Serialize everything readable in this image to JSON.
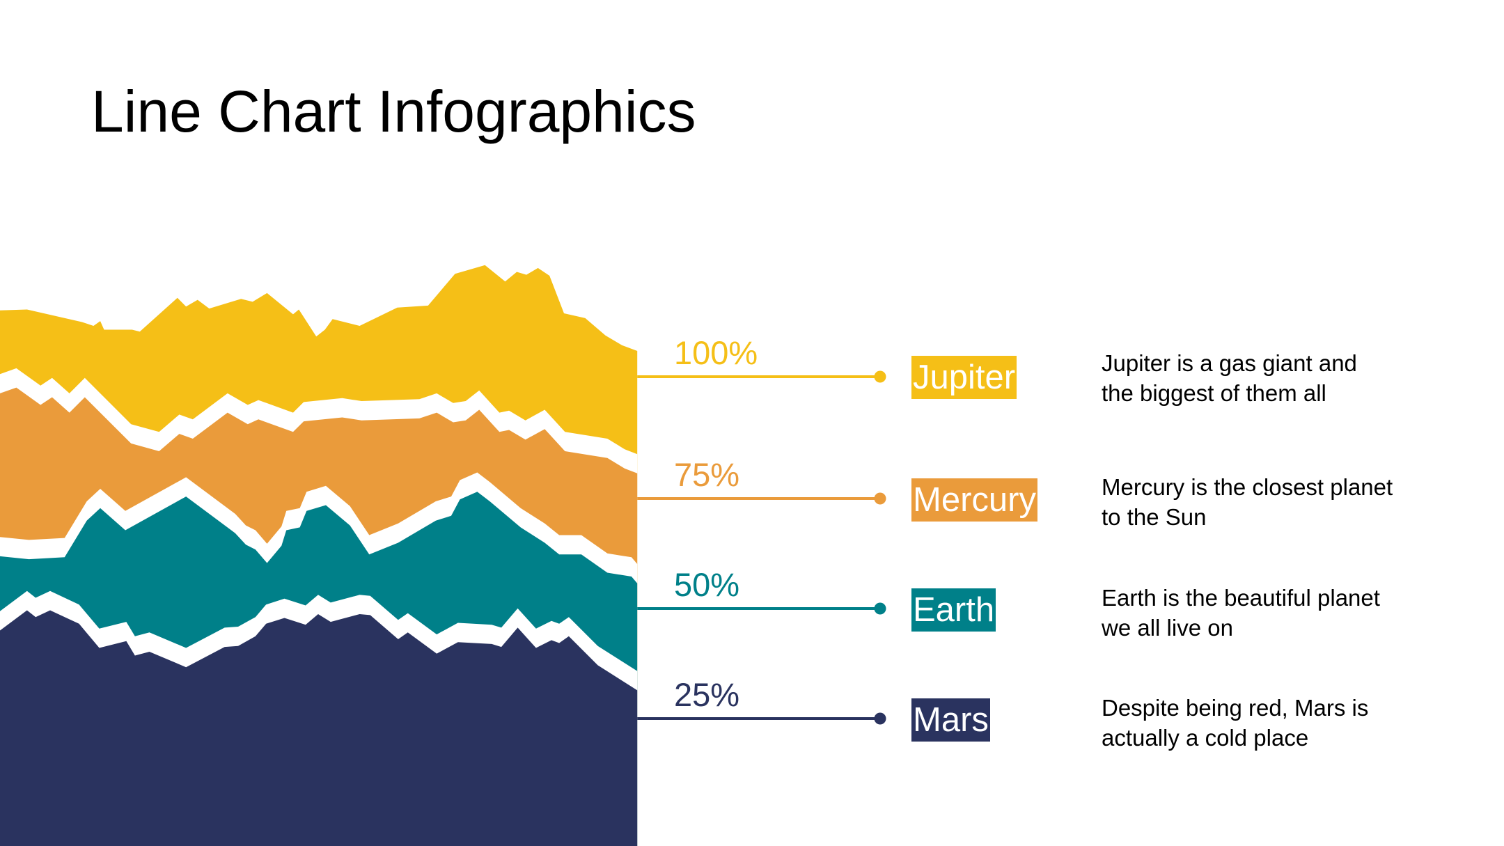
{
  "title": "Line Chart Infographics",
  "chart_data": {
    "type": "area",
    "title": "Line Chart Infographics",
    "xlim": [
      0,
      661
    ],
    "ylim": [
      0,
      882
    ],
    "grid": false,
    "series": [
      {
        "name": "Jupiter",
        "percent": "100%",
        "color": "#F5BF17",
        "description": [
          "Jupiter is a gas giant and",
          "the biggest of them all"
        ],
        "points": [
          [
            0,
            560
          ],
          [
            28,
            561
          ],
          [
            85,
            548
          ],
          [
            97,
            544
          ],
          [
            104,
            549
          ],
          [
            108,
            540
          ],
          [
            137,
            540
          ],
          [
            145,
            538
          ],
          [
            184,
            573
          ],
          [
            193,
            564
          ],
          [
            205,
            571
          ],
          [
            217,
            562
          ],
          [
            250,
            572
          ],
          [
            262,
            569
          ],
          [
            277,
            578
          ],
          [
            304,
            556
          ],
          [
            310,
            561
          ],
          [
            328,
            533
          ],
          [
            337,
            540
          ],
          [
            345,
            551
          ],
          [
            373,
            544
          ],
          [
            412,
            563
          ],
          [
            444,
            565
          ],
          [
            472,
            598
          ],
          [
            503,
            607
          ],
          [
            524,
            590
          ],
          [
            536,
            600
          ],
          [
            546,
            597
          ],
          [
            558,
            604
          ],
          [
            570,
            596
          ],
          [
            585,
            557
          ],
          [
            607,
            552
          ],
          [
            628,
            534
          ],
          [
            645,
            524
          ],
          [
            661,
            518
          ]
        ]
      },
      {
        "name": "Mercury",
        "percent": "75%",
        "color": "#EA9B3B",
        "description": [
          "Mercury is the closest planet",
          "to the Sun"
        ],
        "points": [
          [
            0,
            474
          ],
          [
            17,
            480
          ],
          [
            42,
            462
          ],
          [
            54,
            470
          ],
          [
            72,
            454
          ],
          [
            88,
            470
          ],
          [
            136,
            422
          ],
          [
            165,
            414
          ],
          [
            186,
            432
          ],
          [
            200,
            427
          ],
          [
            236,
            454
          ],
          [
            257,
            442
          ],
          [
            268,
            447
          ],
          [
            304,
            434
          ],
          [
            315,
            445
          ],
          [
            355,
            449
          ],
          [
            375,
            446
          ],
          [
            435,
            448
          ],
          [
            453,
            454
          ],
          [
            470,
            444
          ],
          [
            483,
            446
          ],
          [
            497,
            457
          ],
          [
            518,
            434
          ],
          [
            528,
            436
          ],
          [
            545,
            426
          ],
          [
            565,
            437
          ],
          [
            586,
            414
          ],
          [
            630,
            407
          ],
          [
            648,
            396
          ],
          [
            661,
            391
          ]
        ]
      },
      {
        "name": "Earth",
        "percent": "50%",
        "color": "#008089",
        "description": [
          "Earth is the beautiful planet",
          "we all live on"
        ],
        "points": [
          [
            0,
            305
          ],
          [
            30,
            302
          ],
          [
            67,
            304
          ],
          [
            90,
            342
          ],
          [
            104,
            355
          ],
          [
            130,
            332
          ],
          [
            193,
            367
          ],
          [
            244,
            329
          ],
          [
            255,
            317
          ],
          [
            265,
            312
          ],
          [
            277,
            298
          ],
          [
            292,
            316
          ],
          [
            297,
            332
          ],
          [
            311,
            335
          ],
          [
            318,
            352
          ],
          [
            338,
            358
          ],
          [
            363,
            337
          ],
          [
            383,
            307
          ],
          [
            413,
            319
          ],
          [
            452,
            342
          ],
          [
            468,
            347
          ],
          [
            477,
            364
          ],
          [
            495,
            372
          ],
          [
            508,
            362
          ],
          [
            540,
            335
          ],
          [
            565,
            319
          ],
          [
            580,
            307
          ],
          [
            603,
            307
          ],
          [
            630,
            288
          ],
          [
            655,
            284
          ],
          [
            661,
            277
          ]
        ]
      },
      {
        "name": "Mars",
        "percent": "25%",
        "color": "#2A335F",
        "description": [
          "Despite being red, Mars is",
          "actually a cold place"
        ],
        "points": [
          [
            0,
            228
          ],
          [
            28,
            249
          ],
          [
            37,
            242
          ],
          [
            52,
            249
          ],
          [
            82,
            235
          ],
          [
            103,
            210
          ],
          [
            131,
            217
          ],
          [
            140,
            202
          ],
          [
            155,
            206
          ],
          [
            193,
            190
          ],
          [
            233,
            211
          ],
          [
            247,
            212
          ],
          [
            265,
            222
          ],
          [
            276,
            235
          ],
          [
            295,
            241
          ],
          [
            317,
            234
          ],
          [
            330,
            245
          ],
          [
            343,
            237
          ],
          [
            373,
            245
          ],
          [
            384,
            244
          ],
          [
            413,
            219
          ],
          [
            423,
            226
          ],
          [
            453,
            204
          ],
          [
            475,
            216
          ],
          [
            510,
            214
          ],
          [
            520,
            211
          ],
          [
            537,
            231
          ],
          [
            556,
            210
          ],
          [
            572,
            218
          ],
          [
            580,
            215
          ],
          [
            590,
            222
          ],
          [
            620,
            192
          ],
          [
            661,
            166
          ]
        ]
      }
    ]
  }
}
